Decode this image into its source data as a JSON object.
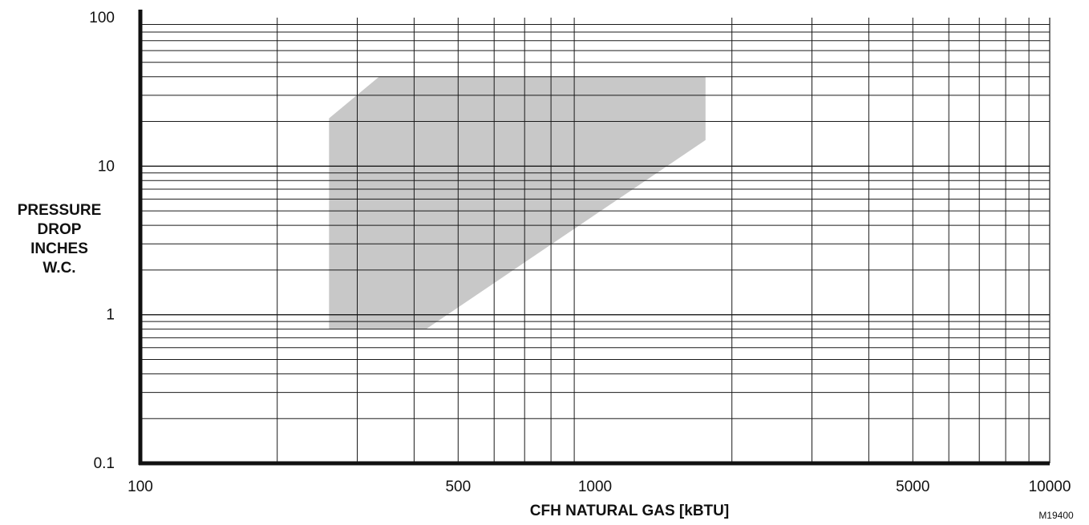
{
  "chart_data": {
    "type": "area",
    "title": "",
    "xlabel": "CFH NATURAL GAS [kBTU]",
    "ylabel_lines": [
      "PRESSURE",
      "DROP",
      "INCHES",
      "W.C."
    ],
    "x_scale": "log",
    "y_scale": "log",
    "xlim": [
      100,
      10000
    ],
    "ylim": [
      0.1,
      100
    ],
    "x_tick_labels": [
      {
        "value": 100,
        "label": "100"
      },
      {
        "value": 500,
        "label": "500"
      },
      {
        "value": 1000,
        "label": "1000"
      },
      {
        "value": 5000,
        "label": "5000"
      },
      {
        "value": 10000,
        "label": "10000"
      }
    ],
    "y_tick_labels": [
      {
        "value": 0.1,
        "label": "0.1"
      },
      {
        "value": 1,
        "label": "1"
      },
      {
        "value": 10,
        "label": "10"
      },
      {
        "value": 100,
        "label": "100"
      }
    ],
    "grid": true,
    "shaded_region": {
      "color": "#c8c8c8",
      "polygon": [
        {
          "x": 260,
          "y": 0.8
        },
        {
          "x": 260,
          "y": 21
        },
        {
          "x": 335,
          "y": 40
        },
        {
          "x": 1750,
          "y": 40
        },
        {
          "x": 1750,
          "y": 15
        },
        {
          "x": 425,
          "y": 0.8
        }
      ]
    }
  },
  "figure_id": "M19400"
}
